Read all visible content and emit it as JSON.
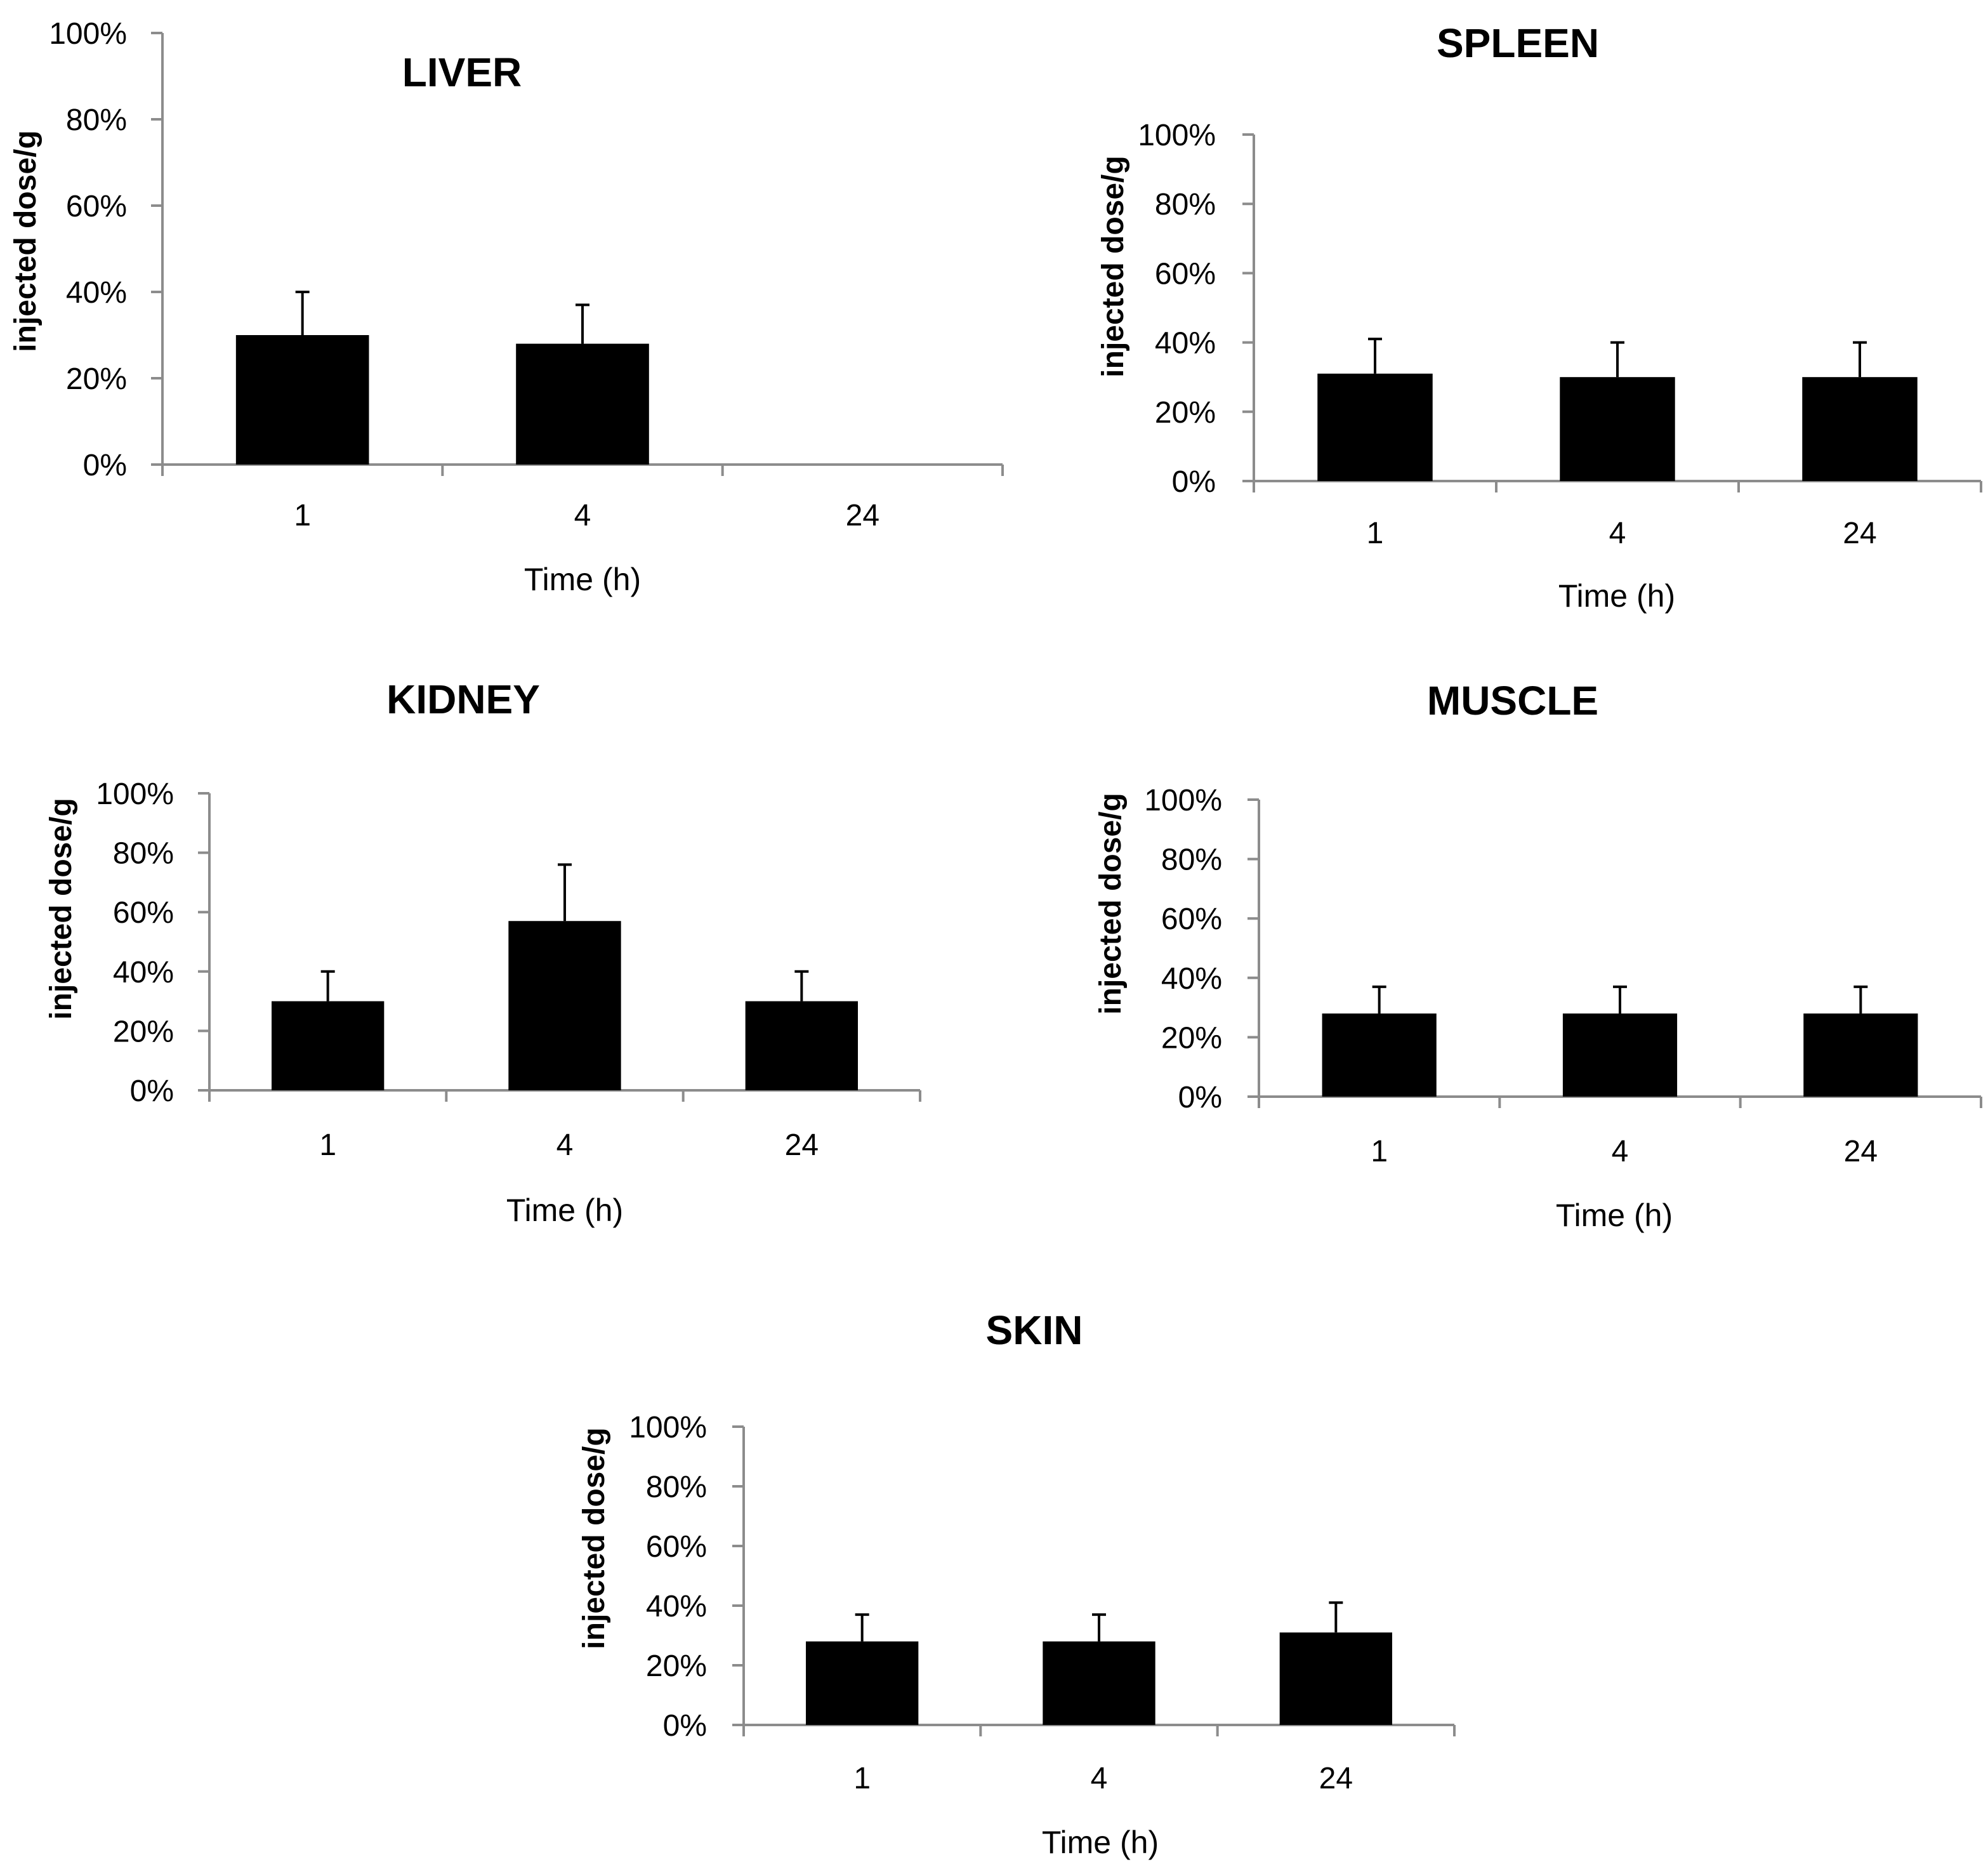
{
  "chart_data": [
    {
      "type": "bar",
      "title": "LIVER",
      "xlabel": "Time (h)",
      "ylabel": "injected dose/g",
      "ylim": [
        0,
        100
      ],
      "yticks": [
        "0%",
        "20%",
        "40%",
        "60%",
        "80%",
        "100%"
      ],
      "categories": [
        "1",
        "4",
        "24"
      ],
      "values": [
        30,
        28,
        0
      ],
      "error_upper": [
        10,
        9,
        0
      ],
      "grid": false,
      "legend": "none"
    },
    {
      "type": "bar",
      "title": "SPLEEN",
      "xlabel": "Time (h)",
      "ylabel": "injected dose/g",
      "ylim": [
        0,
        100
      ],
      "yticks": [
        "0%",
        "20%",
        "40%",
        "60%",
        "80%",
        "100%"
      ],
      "categories": [
        "1",
        "4",
        "24"
      ],
      "values": [
        31,
        30,
        30
      ],
      "error_upper": [
        10,
        10,
        10
      ],
      "grid": false,
      "legend": "none"
    },
    {
      "type": "bar",
      "title": "KIDNEY",
      "xlabel": "Time (h)",
      "ylabel": "injected dose/g",
      "ylim": [
        0,
        100
      ],
      "yticks": [
        "0%",
        "20%",
        "40%",
        "60%",
        "80%",
        "100%"
      ],
      "categories": [
        "1",
        "4",
        "24"
      ],
      "values": [
        30,
        57,
        30
      ],
      "error_upper": [
        10,
        19,
        10
      ],
      "grid": false,
      "legend": "none"
    },
    {
      "type": "bar",
      "title": "MUSCLE",
      "xlabel": "Time (h)",
      "ylabel": "injected dose/g",
      "ylim": [
        0,
        100
      ],
      "yticks": [
        "0%",
        "20%",
        "40%",
        "60%",
        "80%",
        "100%"
      ],
      "categories": [
        "1",
        "4",
        "24"
      ],
      "values": [
        28,
        28,
        28
      ],
      "error_upper": [
        9,
        9,
        9
      ],
      "grid": false,
      "legend": "none"
    },
    {
      "type": "bar",
      "title": "SKIN",
      "xlabel": "Time (h)",
      "ylabel": "injected dose/g",
      "ylim": [
        0,
        100
      ],
      "yticks": [
        "0%",
        "20%",
        "40%",
        "60%",
        "80%",
        "100%"
      ],
      "categories": [
        "1",
        "4",
        "24"
      ],
      "values": [
        28,
        28,
        31
      ],
      "error_upper": [
        9,
        9,
        10
      ],
      "grid": false,
      "legend": "none"
    }
  ],
  "colors": {
    "bar": "#000000",
    "axis": "#8c8c8c",
    "text": "#000000",
    "background": "#ffffff"
  }
}
